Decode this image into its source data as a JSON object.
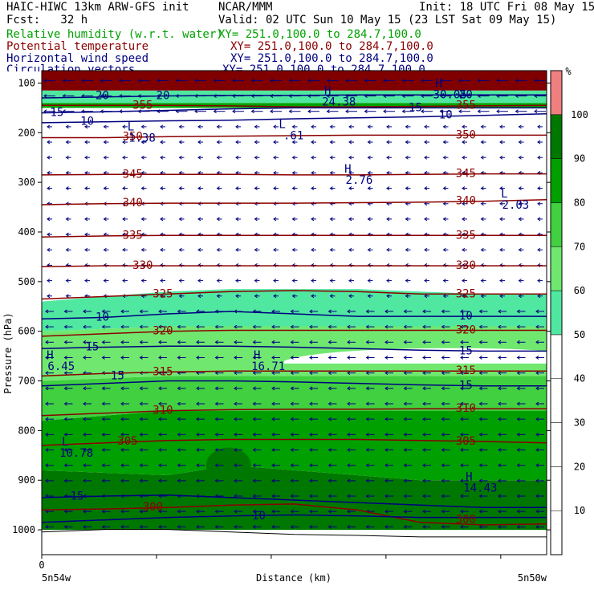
{
  "header": {
    "model": "HAIC-HIWC 13km ARW-GFS init",
    "org": "NCAR/MMM",
    "init": "Init: 18 UTC Fri 08 May 15",
    "fcst": "Fcst:   32 h",
    "valid": "Valid: 02 UTC Sun 10 May 15 (23 LST Sat 09 May 15)"
  },
  "fields": [
    {
      "name": "Relative humidity (w.r.t. water)",
      "xy": "XY= 251.0,100.0 to 284.7,100.0",
      "color": "#00a000"
    },
    {
      "name": "Potential temperature",
      "xy": "XY= 251.0,100.0 to 284.7,100.0",
      "color": "#8b0000"
    },
    {
      "name": "Horizontal wind speed",
      "xy": "XY= 251.0,100.0 to 284.7,100.0",
      "color": "#000080"
    },
    {
      "name": "Circulation vectors",
      "xy": "XY= 251.0,100.0 to 284.7,100.0",
      "color": "#000080"
    }
  ],
  "colorbar": {
    "unit": "%",
    "levels": [
      10,
      20,
      30,
      40,
      50,
      60,
      70,
      80,
      90,
      100
    ],
    "colors": [
      "#ffffff",
      "#ffffff",
      "#ffffff",
      "#ffffff",
      "#ffffff",
      "#50e8a0",
      "#70e870",
      "#40d040",
      "#00a000",
      "#007800",
      "#f08080"
    ]
  },
  "chart_data": {
    "type": "heatmap",
    "xlabel": "Distance (km)",
    "ylabel": "Pressure (hPa)",
    "x_start_label": "0",
    "x_left_label": "5n54w",
    "x_right_label": "5n50w",
    "ylim": [
      1050,
      75
    ],
    "y_ticks": [
      100,
      200,
      300,
      400,
      500,
      600,
      700,
      800,
      900,
      1000
    ],
    "theta_contours": [
      {
        "value": 300,
        "p": [
          960,
          958,
          955,
          950,
          948,
          960,
          985,
          990,
          988
        ]
      },
      {
        "value": 305,
        "p": [
          830,
          825,
          820,
          818,
          818,
          818,
          820,
          822,
          825
        ]
      },
      {
        "value": 310,
        "p": [
          770,
          765,
          760,
          758,
          757,
          757,
          756,
          756,
          756
        ]
      },
      {
        "value": 315,
        "p": [
          690,
          685,
          682,
          680,
          680,
          680,
          680,
          680,
          680
        ]
      },
      {
        "value": 320,
        "p": [
          610,
          605,
          600,
          598,
          598,
          598,
          598,
          598,
          598
        ]
      },
      {
        "value": 325,
        "p": [
          535,
          530,
          525,
          520,
          518,
          520,
          525,
          525,
          525
        ]
      },
      {
        "value": 330,
        "p": [
          470,
          468,
          468,
          468,
          468,
          468,
          468,
          468,
          468
        ]
      },
      {
        "value": 335,
        "p": [
          410,
          408,
          407,
          407,
          407,
          407,
          407,
          407,
          407
        ]
      },
      {
        "value": 340,
        "p": [
          345,
          343,
          342,
          342,
          342,
          341,
          340,
          338,
          335
        ]
      },
      {
        "value": 345,
        "p": [
          285,
          284,
          284,
          284,
          285,
          285,
          284,
          283,
          283
        ]
      },
      {
        "value": 350,
        "p": [
          210,
          210,
          208,
          207,
          206,
          205,
          205,
          205,
          205
        ]
      },
      {
        "value": 355,
        "p": [
          145,
          145,
          145,
          146,
          148,
          148,
          147,
          146,
          145
        ]
      }
    ],
    "theta_labels": [
      {
        "text": "300",
        "x": 0.22,
        "p": 955
      },
      {
        "text": "300",
        "x": 0.84,
        "p": 980
      },
      {
        "text": "305",
        "x": 0.17,
        "p": 822
      },
      {
        "text": "305",
        "x": 0.84,
        "p": 822
      },
      {
        "text": "310",
        "x": 0.24,
        "p": 760
      },
      {
        "text": "310",
        "x": 0.84,
        "p": 756
      },
      {
        "text": "315",
        "x": 0.24,
        "p": 682
      },
      {
        "text": "315",
        "x": 0.84,
        "p": 680
      },
      {
        "text": "320",
        "x": 0.24,
        "p": 600
      },
      {
        "text": "320",
        "x": 0.84,
        "p": 598
      },
      {
        "text": "325",
        "x": 0.24,
        "p": 525
      },
      {
        "text": "325",
        "x": 0.84,
        "p": 525
      },
      {
        "text": "330",
        "x": 0.2,
        "p": 468
      },
      {
        "text": "330",
        "x": 0.84,
        "p": 468
      },
      {
        "text": "335",
        "x": 0.18,
        "p": 407
      },
      {
        "text": "335",
        "x": 0.84,
        "p": 407
      },
      {
        "text": "340",
        "x": 0.18,
        "p": 342
      },
      {
        "text": "340",
        "x": 0.84,
        "p": 338
      },
      {
        "text": "345",
        "x": 0.18,
        "p": 284
      },
      {
        "text": "345",
        "x": 0.84,
        "p": 283
      },
      {
        "text": "350",
        "x": 0.18,
        "p": 208
      },
      {
        "text": "350",
        "x": 0.84,
        "p": 205
      },
      {
        "text": "355",
        "x": 0.2,
        "p": 145
      },
      {
        "text": "355",
        "x": 0.84,
        "p": 145
      }
    ],
    "wind_contours": [
      {
        "value": 10,
        "p": [
          985,
          980,
          975,
          972,
          970,
          972,
          975,
          975,
          975
        ]
      },
      {
        "value": 15,
        "p": [
          935,
          932,
          930,
          935,
          940,
          945,
          950,
          955,
          955
        ]
      },
      {
        "value": 15,
        "p": [
          710,
          705,
          700,
          700,
          702,
          705,
          708,
          710,
          710
        ]
      },
      {
        "value": 15,
        "p": [
          635,
          632,
          630,
          630,
          632,
          635,
          638,
          640,
          640
        ]
      },
      {
        "value": 10,
        "p": [
          575,
          572,
          565,
          560,
          565,
          570,
          570,
          570,
          570
        ]
      },
      {
        "value": 10,
        "p": [
          180,
          178,
          176,
          175,
          172,
          170,
          168,
          165,
          162
        ]
      },
      {
        "value": 15,
        "p": [
          160,
          158,
          155,
          152,
          150,
          150,
          150,
          150,
          150
        ]
      },
      {
        "value": 20,
        "p": [
          130,
          128,
          126,
          125,
          125,
          124,
          124,
          124,
          124
        ]
      }
    ],
    "wind_labels": [
      {
        "text": "10",
        "x": 0.43,
        "p": 972
      },
      {
        "text": "15",
        "x": 0.07,
        "p": 933
      },
      {
        "text": "15",
        "x": 0.15,
        "p": 690
      },
      {
        "text": "15",
        "x": 0.84,
        "p": 710
      },
      {
        "text": "15",
        "x": 0.1,
        "p": 632
      },
      {
        "text": "15",
        "x": 0.84,
        "p": 640
      },
      {
        "text": "10",
        "x": 0.12,
        "p": 572
      },
      {
        "text": "10",
        "x": 0.84,
        "p": 570
      },
      {
        "text": "10",
        "x": 0.09,
        "p": 178
      },
      {
        "text": "10",
        "x": 0.8,
        "p": 165
      },
      {
        "text": "15",
        "x": 0.03,
        "p": 160
      },
      {
        "text": "15",
        "x": 0.74,
        "p": 150
      },
      {
        "text": "20",
        "x": 0.24,
        "p": 126
      },
      {
        "text": "20",
        "x": 0.12,
        "p": 126
      },
      {
        "text": "20",
        "x": 0.84,
        "p": 124
      }
    ],
    "extrema": [
      {
        "kind": "H",
        "value": "6.45",
        "x": 0.01,
        "p": 665
      },
      {
        "kind": "H",
        "value": "16.71",
        "x": 0.42,
        "p": 665
      },
      {
        "kind": "L",
        "value": "10.78",
        "x": 0.04,
        "p": 840
      },
      {
        "kind": "H",
        "value": "14.43",
        "x": 0.84,
        "p": 910
      },
      {
        "kind": "L",
        "value": "1.38",
        "x": 0.17,
        "p": 205
      },
      {
        "kind": "L",
        "value": ".61",
        "x": 0.47,
        "p": 200
      },
      {
        "kind": "H",
        "value": "2.76",
        "x": 0.6,
        "p": 290
      },
      {
        "kind": "L",
        "value": "2.03",
        "x": 0.91,
        "p": 340
      },
      {
        "kind": "H",
        "value": "24.38",
        "x": 0.56,
        "p": 132
      },
      {
        "kind": "H",
        "value": "30.05",
        "x": 0.78,
        "p": 118
      }
    ]
  }
}
